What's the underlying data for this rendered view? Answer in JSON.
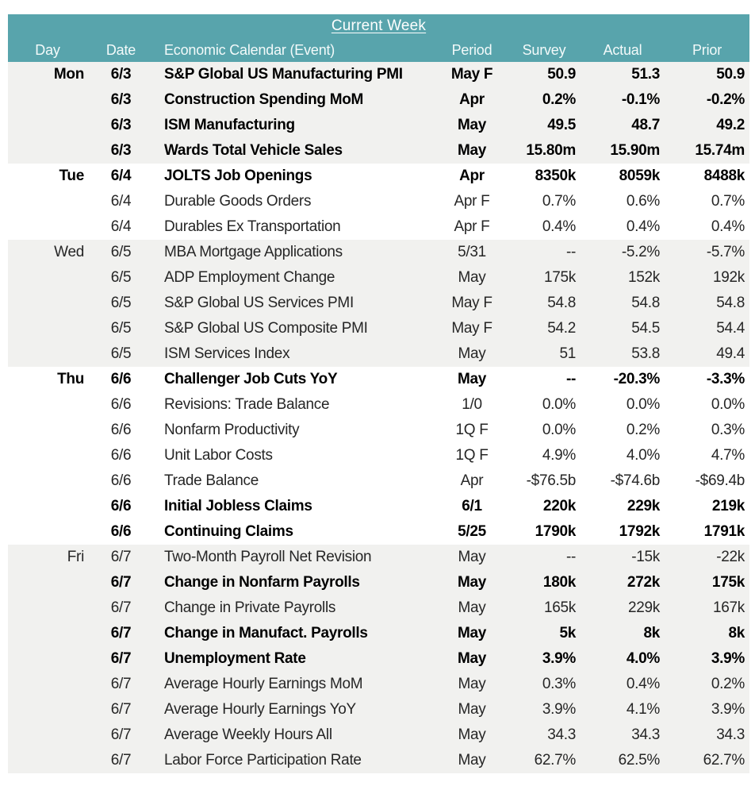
{
  "title": "Current Week",
  "columns": [
    "Day",
    "Date",
    "Economic Calendar (Event)",
    "Period",
    "Survey",
    "Actual",
    "Prior"
  ],
  "colors": {
    "header_bg": "#58A4AC",
    "header_text": "#FDFEFE",
    "band_gray": "#F1F1EF",
    "band_white": "#FFFFFF",
    "text_regular": "#262626",
    "text_bold": "#000000"
  },
  "sections": [
    {
      "day": "Mon",
      "band": "gray",
      "rows": [
        {
          "date": "6/3",
          "event": "S&P Global US Manufacturing PMI",
          "period": "May F",
          "survey": "50.9",
          "actual": "51.3",
          "prior": "50.9",
          "bold": true
        },
        {
          "date": "6/3",
          "event": "Construction Spending MoM",
          "period": "Apr",
          "survey": "0.2%",
          "actual": "-0.1%",
          "prior": "-0.2%",
          "bold": true
        },
        {
          "date": "6/3",
          "event": "ISM Manufacturing",
          "period": "May",
          "survey": "49.5",
          "actual": "48.7",
          "prior": "49.2",
          "bold": true
        },
        {
          "date": "6/3",
          "event": "Wards Total Vehicle Sales",
          "period": "May",
          "survey": "15.80m",
          "actual": "15.90m",
          "prior": "15.74m",
          "bold": true
        }
      ]
    },
    {
      "day": "Tue",
      "band": "white",
      "rows": [
        {
          "date": "6/4",
          "event": "JOLTS Job Openings",
          "period": "Apr",
          "survey": "8350k",
          "actual": "8059k",
          "prior": "8488k",
          "bold": true
        },
        {
          "date": "6/4",
          "event": "Durable Goods Orders",
          "period": "Apr F",
          "survey": "0.7%",
          "actual": "0.6%",
          "prior": "0.7%",
          "bold": false
        },
        {
          "date": "6/4",
          "event": "Durables Ex Transportation",
          "period": "Apr F",
          "survey": "0.4%",
          "actual": "0.4%",
          "prior": "0.4%",
          "bold": false
        }
      ]
    },
    {
      "day": "Wed",
      "band": "gray",
      "rows": [
        {
          "date": "6/5",
          "event": "MBA Mortgage Applications",
          "period": "5/31",
          "survey": "--",
          "actual": "-5.2%",
          "prior": "-5.7%",
          "bold": false
        },
        {
          "date": "6/5",
          "event": "ADP Employment Change",
          "period": "May",
          "survey": "175k",
          "actual": "152k",
          "prior": "192k",
          "bold": false
        },
        {
          "date": "6/5",
          "event": "S&P Global US Services PMI",
          "period": "May F",
          "survey": "54.8",
          "actual": "54.8",
          "prior": "54.8",
          "bold": false
        },
        {
          "date": "6/5",
          "event": "S&P Global US Composite PMI",
          "period": "May F",
          "survey": "54.2",
          "actual": "54.5",
          "prior": "54.4",
          "bold": false
        },
        {
          "date": "6/5",
          "event": "ISM Services Index",
          "period": "May",
          "survey": "51",
          "actual": "53.8",
          "prior": "49.4",
          "bold": false
        }
      ]
    },
    {
      "day": "Thu",
      "band": "white",
      "rows": [
        {
          "date": "6/6",
          "event": "Challenger Job Cuts YoY",
          "period": "May",
          "survey": "--",
          "actual": "-20.3%",
          "prior": "-3.3%",
          "bold": true
        },
        {
          "date": "6/6",
          "event": "Revisions: Trade Balance",
          "period": "1/0",
          "survey": "0.0%",
          "actual": "0.0%",
          "prior": "0.0%",
          "bold": false
        },
        {
          "date": "6/6",
          "event": "Nonfarm Productivity",
          "period": "1Q F",
          "survey": "0.0%",
          "actual": "0.2%",
          "prior": "0.3%",
          "bold": false
        },
        {
          "date": "6/6",
          "event": "Unit Labor Costs",
          "period": "1Q F",
          "survey": "4.9%",
          "actual": "4.0%",
          "prior": "4.7%",
          "bold": false
        },
        {
          "date": "6/6",
          "event": "Trade Balance",
          "period": "Apr",
          "survey": "-$76.5b",
          "actual": "-$74.6b",
          "prior": "-$69.4b",
          "bold": false
        },
        {
          "date": "6/6",
          "event": "Initial Jobless Claims",
          "period": "6/1",
          "survey": "220k",
          "actual": "229k",
          "prior": "219k",
          "bold": true
        },
        {
          "date": "6/6",
          "event": "Continuing Claims",
          "period": "5/25",
          "survey": "1790k",
          "actual": "1792k",
          "prior": "1791k",
          "bold": true
        }
      ]
    },
    {
      "day": "Fri",
      "band": "gray",
      "rows": [
        {
          "date": "6/7",
          "event": "Two-Month Payroll Net Revision",
          "period": "May",
          "survey": "--",
          "actual": "-15k",
          "prior": "-22k",
          "bold": false
        },
        {
          "date": "6/7",
          "event": "Change in Nonfarm Payrolls",
          "period": "May",
          "survey": "180k",
          "actual": "272k",
          "prior": "175k",
          "bold": true
        },
        {
          "date": "6/7",
          "event": "Change in Private Payrolls",
          "period": "May",
          "survey": "165k",
          "actual": "229k",
          "prior": "167k",
          "bold": false
        },
        {
          "date": "6/7",
          "event": "Change in Manufact. Payrolls",
          "period": "May",
          "survey": "5k",
          "actual": "8k",
          "prior": "8k",
          "bold": true
        },
        {
          "date": "6/7",
          "event": "Unemployment Rate",
          "period": "May",
          "survey": "3.9%",
          "actual": "4.0%",
          "prior": "3.9%",
          "bold": true
        },
        {
          "date": "6/7",
          "event": "Average Hourly Earnings MoM",
          "period": "May",
          "survey": "0.3%",
          "actual": "0.4%",
          "prior": "0.2%",
          "bold": false
        },
        {
          "date": "6/7",
          "event": "Average Hourly Earnings YoY",
          "period": "May",
          "survey": "3.9%",
          "actual": "4.1%",
          "prior": "3.9%",
          "bold": false
        },
        {
          "date": "6/7",
          "event": "Average Weekly Hours All",
          "period": "May",
          "survey": "34.3",
          "actual": "34.3",
          "prior": "34.3",
          "bold": false
        },
        {
          "date": "6/7",
          "event": "Labor Force Participation Rate",
          "period": "May",
          "survey": "62.7%",
          "actual": "62.5%",
          "prior": "62.7%",
          "bold": false
        }
      ]
    }
  ]
}
